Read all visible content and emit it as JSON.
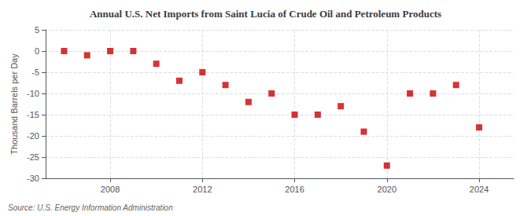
{
  "chart_data": {
    "type": "scatter",
    "title": "Annual U.S. Net Imports from Saint Lucia of Crude Oil and Petroleum Products",
    "ylabel": "Thousand Barrels per Day",
    "source": "Source: U.S. Energy Information Administration",
    "x": [
      2006,
      2007,
      2008,
      2009,
      2010,
      2011,
      2012,
      2013,
      2014,
      2015,
      2016,
      2017,
      2018,
      2019,
      2020,
      2021,
      2022,
      2023,
      2024
    ],
    "values": [
      0,
      -1,
      0,
      0,
      -3,
      -7,
      -5,
      -8,
      -12,
      -10,
      -15,
      -15,
      -13,
      -19,
      -27,
      -10,
      -10,
      -8,
      -18
    ],
    "xlim": [
      2005.2,
      2025.5
    ],
    "xticks": [
      2008,
      2012,
      2016,
      2020,
      2024
    ],
    "ylim": [
      -30,
      5
    ],
    "yticks": [
      5,
      0,
      -5,
      -10,
      -15,
      -20,
      -25,
      -30
    ],
    "color": "#cc0000",
    "marker": "square",
    "grid": true
  }
}
